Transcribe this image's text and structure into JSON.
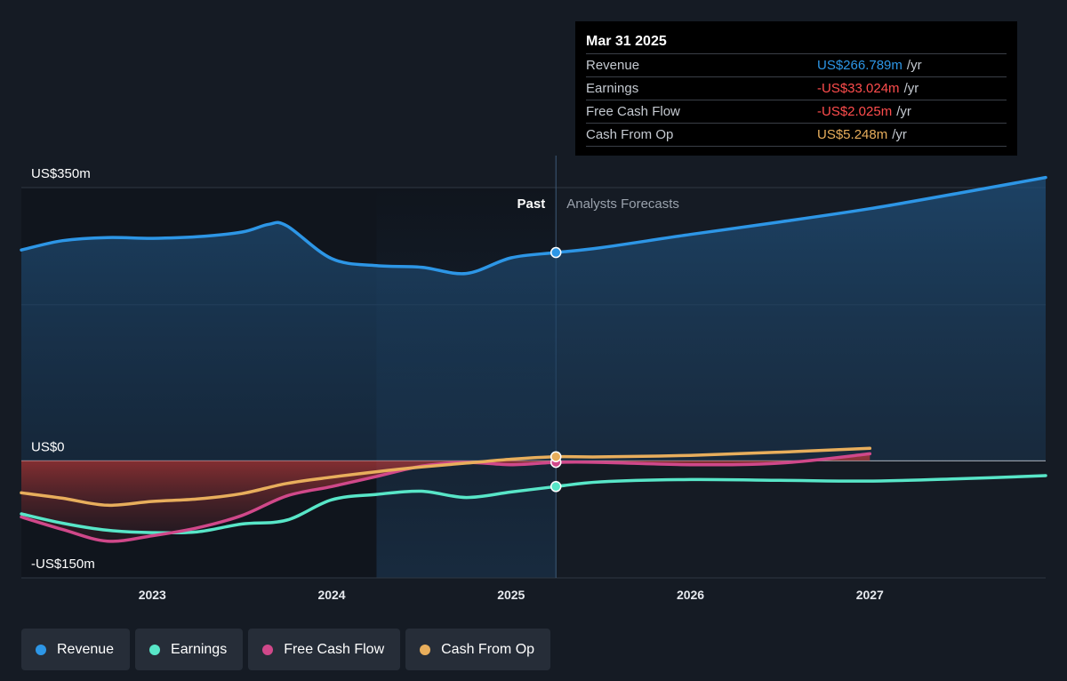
{
  "chart_data": {
    "type": "line",
    "y_unit": "US$m",
    "ylim": [
      -150,
      350
    ],
    "xlim": [
      2022.27,
      2027.98
    ],
    "y_tick_labels": [
      {
        "value": 350,
        "label": "US$350m"
      },
      {
        "value": 0,
        "label": "US$0"
      },
      {
        "value": -150,
        "label": "-US$150m"
      }
    ],
    "gridlines": [
      350,
      200,
      -150
    ],
    "x_ticks": [
      {
        "value": 2023,
        "label": "2023"
      },
      {
        "value": 2024,
        "label": "2024"
      },
      {
        "value": 2025,
        "label": "2025"
      },
      {
        "value": 2026,
        "label": "2026"
      },
      {
        "value": 2027,
        "label": "2027"
      }
    ],
    "past_label": "Past",
    "forecast_label": "Analysts Forecasts",
    "past_end": 2025.25,
    "highlight_start": 2024.25,
    "series": [
      {
        "name": "Revenue",
        "color": "#2d96e6",
        "filled": true,
        "points": [
          [
            2022.27,
            270
          ],
          [
            2022.5,
            282
          ],
          [
            2022.75,
            286
          ],
          [
            2023.0,
            285
          ],
          [
            2023.25,
            287
          ],
          [
            2023.5,
            293
          ],
          [
            2023.65,
            303
          ],
          [
            2023.75,
            301
          ],
          [
            2024.0,
            259
          ],
          [
            2024.25,
            250
          ],
          [
            2024.5,
            248
          ],
          [
            2024.75,
            240
          ],
          [
            2025.0,
            260
          ],
          [
            2025.25,
            266.789
          ],
          [
            2025.5,
            273
          ],
          [
            2026.0,
            290
          ],
          [
            2026.5,
            306
          ],
          [
            2027.0,
            323
          ],
          [
            2027.5,
            343
          ],
          [
            2027.98,
            363
          ]
        ]
      },
      {
        "name": "Earnings",
        "color": "#58e6c8",
        "points": [
          [
            2022.27,
            -68
          ],
          [
            2022.5,
            -80
          ],
          [
            2022.75,
            -89
          ],
          [
            2023.0,
            -92
          ],
          [
            2023.25,
            -91
          ],
          [
            2023.5,
            -81
          ],
          [
            2023.75,
            -76
          ],
          [
            2024.0,
            -50
          ],
          [
            2024.25,
            -43
          ],
          [
            2024.5,
            -39
          ],
          [
            2024.75,
            -47
          ],
          [
            2025.0,
            -40
          ],
          [
            2025.25,
            -33.024
          ],
          [
            2025.5,
            -27
          ],
          [
            2026.0,
            -24
          ],
          [
            2026.5,
            -25
          ],
          [
            2027.0,
            -26
          ],
          [
            2027.5,
            -23
          ],
          [
            2027.98,
            -19
          ]
        ]
      },
      {
        "name": "Free Cash Flow",
        "color": "#d0488a",
        "filled_negative": true,
        "points": [
          [
            2022.27,
            -72
          ],
          [
            2022.5,
            -88
          ],
          [
            2022.75,
            -103
          ],
          [
            2023.0,
            -96
          ],
          [
            2023.25,
            -86
          ],
          [
            2023.5,
            -70
          ],
          [
            2023.75,
            -45
          ],
          [
            2024.0,
            -33
          ],
          [
            2024.25,
            -20
          ],
          [
            2024.5,
            -7
          ],
          [
            2024.75,
            -2
          ],
          [
            2025.0,
            -5
          ],
          [
            2025.25,
            -2.025
          ],
          [
            2025.5,
            -2
          ],
          [
            2026.0,
            -5
          ],
          [
            2026.5,
            -3
          ],
          [
            2027.0,
            9
          ]
        ]
      },
      {
        "name": "Cash From Op",
        "color": "#e8ae5c",
        "points": [
          [
            2022.27,
            -41
          ],
          [
            2022.5,
            -48
          ],
          [
            2022.75,
            -57
          ],
          [
            2023.0,
            -52
          ],
          [
            2023.25,
            -49
          ],
          [
            2023.5,
            -42
          ],
          [
            2023.75,
            -29
          ],
          [
            2024.0,
            -21
          ],
          [
            2024.25,
            -14
          ],
          [
            2024.5,
            -8
          ],
          [
            2024.75,
            -3
          ],
          [
            2025.0,
            2
          ],
          [
            2025.25,
            5.248
          ],
          [
            2025.5,
            5
          ],
          [
            2026.0,
            7
          ],
          [
            2026.5,
            11
          ],
          [
            2027.0,
            16
          ]
        ]
      }
    ]
  },
  "tooltip": {
    "date": "Mar 31 2025",
    "rows": [
      {
        "name": "Revenue",
        "value": "US$266.789m",
        "unit": "/yr",
        "color": "#2d96e6"
      },
      {
        "name": "Earnings",
        "value": "-US$33.024m",
        "unit": "/yr",
        "color": "#ff4d4d"
      },
      {
        "name": "Free Cash Flow",
        "value": "-US$2.025m",
        "unit": "/yr",
        "color": "#ff4d4d"
      },
      {
        "name": "Cash From Op",
        "value": "US$5.248m",
        "unit": "/yr",
        "color": "#e8ae5c"
      }
    ]
  },
  "legend": [
    {
      "label": "Revenue",
      "color": "#2d96e6"
    },
    {
      "label": "Earnings",
      "color": "#58e6c8"
    },
    {
      "label": "Free Cash Flow",
      "color": "#d0488a"
    },
    {
      "label": "Cash From Op",
      "color": "#e8ae5c"
    }
  ]
}
